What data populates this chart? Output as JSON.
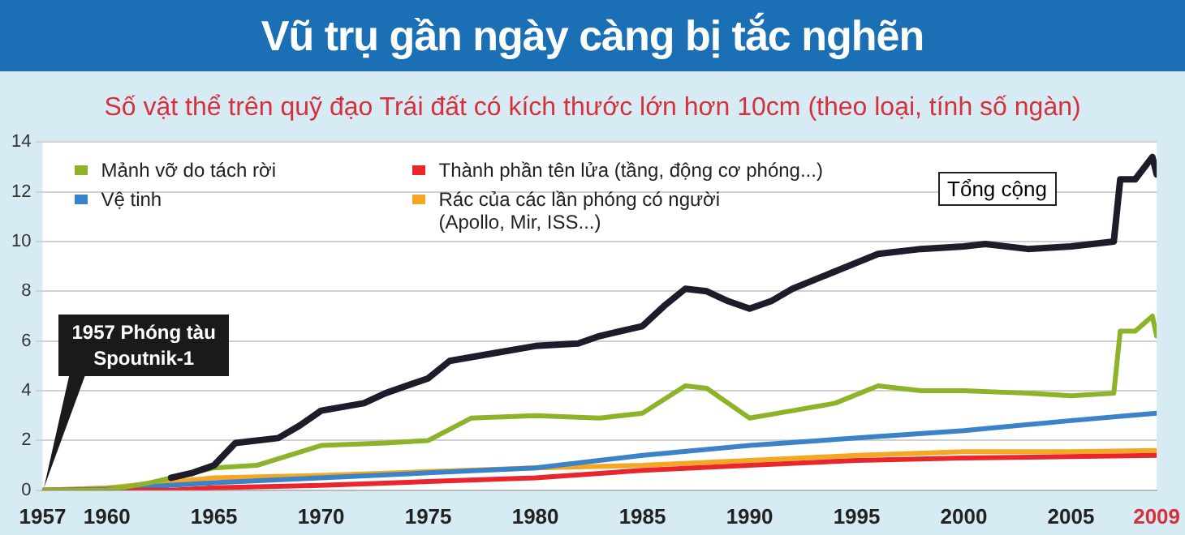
{
  "chart_data": {
    "type": "line",
    "title": "Vũ trụ gần ngày càng bị tắc nghẽn",
    "subtitle": "Số vật thể trên quỹ đạo Trái đất có kích thước lớn hơn 10cm (theo loại, tính số ngàn)",
    "xlim": [
      1957,
      2009
    ],
    "xticks": [
      1957,
      1960,
      1965,
      1970,
      1975,
      1980,
      1985,
      1990,
      1995,
      2000,
      2005,
      2009
    ],
    "ylim": [
      0,
      14
    ],
    "yticks": [
      0,
      2,
      4,
      6,
      8,
      10,
      12,
      14
    ],
    "grid": "y",
    "legend": "top left",
    "marker": "none",
    "line_style": "solid",
    "annotations": [
      {
        "text": "1957 Phóng tàu Spoutnik-1",
        "x": 1957,
        "y": 0
      }
    ],
    "series": [
      {
        "name": "Mảnh vỡ do tách rời",
        "color": "#8db32b",
        "x": [
          1957,
          1960,
          1962,
          1965,
          1967,
          1970,
          1973,
          1975,
          1977,
          1980,
          1983,
          1985,
          1987,
          1988,
          1990,
          1992,
          1994,
          1996,
          1998,
          2000,
          2003,
          2005,
          2007,
          2007.3,
          2008,
          2008.8,
          2009
        ],
        "values": [
          0,
          0,
          0.3,
          0.9,
          1.0,
          1.8,
          1.9,
          2.0,
          2.9,
          3.0,
          2.9,
          3.1,
          4.2,
          4.1,
          2.9,
          3.2,
          3.5,
          4.2,
          4.0,
          4.0,
          3.9,
          3.8,
          3.9,
          6.4,
          6.4,
          7.0,
          6.2
        ]
      },
      {
        "name": "Thành phần tên lửa (tầng, động cơ phóng...)",
        "color": "#e8262c",
        "x": [
          1957,
          1962,
          1963,
          1965,
          1970,
          1975,
          1980,
          1985,
          1990,
          1995,
          2000,
          2005,
          2009
        ],
        "values": [
          0,
          0,
          0,
          0.1,
          0.2,
          0.35,
          0.5,
          0.8,
          1.0,
          1.2,
          1.3,
          1.35,
          1.4
        ]
      },
      {
        "name": "Vệ tinh",
        "color": "#3b83c9",
        "x": [
          1957,
          1960,
          1965,
          1970,
          1975,
          1980,
          1985,
          1990,
          1995,
          2000,
          2005,
          2009
        ],
        "values": [
          0,
          0.05,
          0.3,
          0.5,
          0.7,
          0.9,
          1.4,
          1.8,
          2.1,
          2.4,
          2.8,
          3.1
        ]
      },
      {
        "name": "Rác của các lần phóng có người (Apollo, Mir, ISS...)",
        "color": "#f5a623",
        "x": [
          1957,
          1960,
          1965,
          1970,
          1975,
          1980,
          1985,
          1990,
          1995,
          2000,
          2005,
          2009
        ],
        "values": [
          0,
          0.1,
          0.5,
          0.6,
          0.75,
          0.9,
          1.0,
          1.2,
          1.4,
          1.55,
          1.55,
          1.6
        ]
      },
      {
        "name": "Tổng cộng",
        "color": "#1c1c2a",
        "x": [
          1963,
          1964,
          1965,
          1966,
          1968,
          1969,
          1970,
          1972,
          1973,
          1975,
          1976,
          1978,
          1980,
          1982,
          1983,
          1985,
          1986,
          1987,
          1988,
          1989,
          1990,
          1991,
          1992,
          1994,
          1996,
          1998,
          2000,
          2001,
          2003,
          2005,
          2007,
          2007.3,
          2008,
          2008.8,
          2009
        ],
        "values": [
          0.5,
          0.7,
          1.0,
          1.9,
          2.1,
          2.6,
          3.2,
          3.5,
          3.9,
          4.5,
          5.2,
          5.5,
          5.8,
          5.9,
          6.2,
          6.6,
          7.4,
          8.1,
          8.0,
          7.6,
          7.3,
          7.6,
          8.1,
          8.8,
          9.5,
          9.7,
          9.8,
          9.9,
          9.7,
          9.8,
          10.0,
          12.5,
          12.5,
          13.4,
          12.7
        ]
      }
    ]
  }
}
